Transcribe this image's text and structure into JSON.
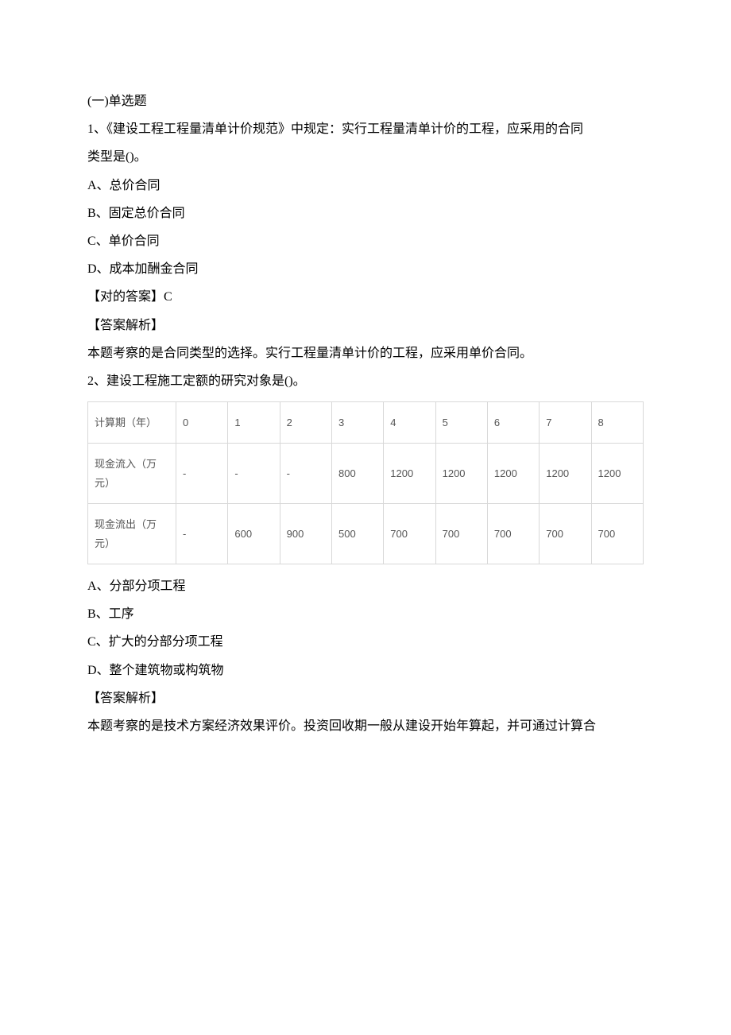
{
  "lines": {
    "section_title": "(一)单选题",
    "q1_line1": "1、《建设工程工程量清单计价规范》中规定：实行工程量清单计价的工程，应采用的合同",
    "q1_line2": "类型是()。",
    "q1_optA": "A、总价合同",
    "q1_optB": "B、固定总价合同",
    "q1_optC": "C、单价合同",
    "q1_optD": "D、成本加酬金合同",
    "q1_answer": "【对的答案】C",
    "q1_analysis_label": "【答案解析】",
    "q1_analysis_text": "本题考察的是合同类型的选择。实行工程量清单计价的工程，应采用单价合同。",
    "q2_stem": "2、建设工程施工定额的研究对象是()。",
    "q2_optA": "A、分部分项工程",
    "q2_optB": "B、工序",
    "q2_optC": "C、扩大的分部分项工程",
    "q2_optD": "D、整个建筑物或构筑物",
    "q2_analysis_label": "【答案解析】",
    "q2_analysis_text": "本题考察的是技术方案经济效果评价。投资回收期一般从建设开始年算起，并可通过计算合"
  },
  "table": {
    "rows": [
      {
        "label": "计算期（年）",
        "cells": [
          "0",
          "1",
          "2",
          "3",
          "4",
          "5",
          "6",
          "7",
          "8"
        ]
      },
      {
        "label": "现金流入（万元）",
        "cells": [
          "-",
          "-",
          "-",
          "800",
          "1200",
          "1200",
          "1200",
          "1200",
          "1200"
        ]
      },
      {
        "label": "现金流出（万元）",
        "cells": [
          "-",
          "600",
          "900",
          "500",
          "700",
          "700",
          "700",
          "700",
          "700"
        ]
      }
    ]
  },
  "colors": {
    "text": "#000000",
    "table_border": "#d8d8d8",
    "table_text": "#555555",
    "background": "#ffffff"
  }
}
